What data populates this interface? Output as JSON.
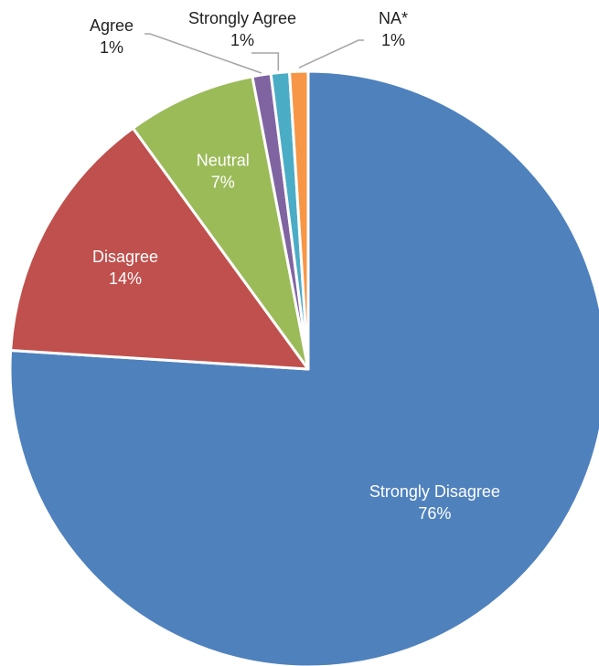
{
  "chart_data": {
    "type": "pie",
    "title": "",
    "start_angle_deg": 0,
    "direction": "clockwise",
    "slices": [
      {
        "label": "Strongly Disagree",
        "value": 76,
        "value_label": "76%",
        "color": "#4F81BD",
        "label_position": "inside"
      },
      {
        "label": "Disagree",
        "value": 14,
        "value_label": "14%",
        "color": "#C0504D",
        "label_position": "inside"
      },
      {
        "label": "Neutral",
        "value": 7,
        "value_label": "7%",
        "color": "#9BBB59",
        "label_position": "inside"
      },
      {
        "label": "Agree",
        "value": 1,
        "value_label": "1%",
        "color": "#8064A2",
        "label_position": "outside"
      },
      {
        "label": "Strongly Agree",
        "value": 1,
        "value_label": "1%",
        "color": "#4BACC6",
        "label_position": "outside"
      },
      {
        "label": "NA*",
        "value": 1,
        "value_label": "1%",
        "color": "#F79646",
        "label_position": "outside"
      }
    ]
  }
}
